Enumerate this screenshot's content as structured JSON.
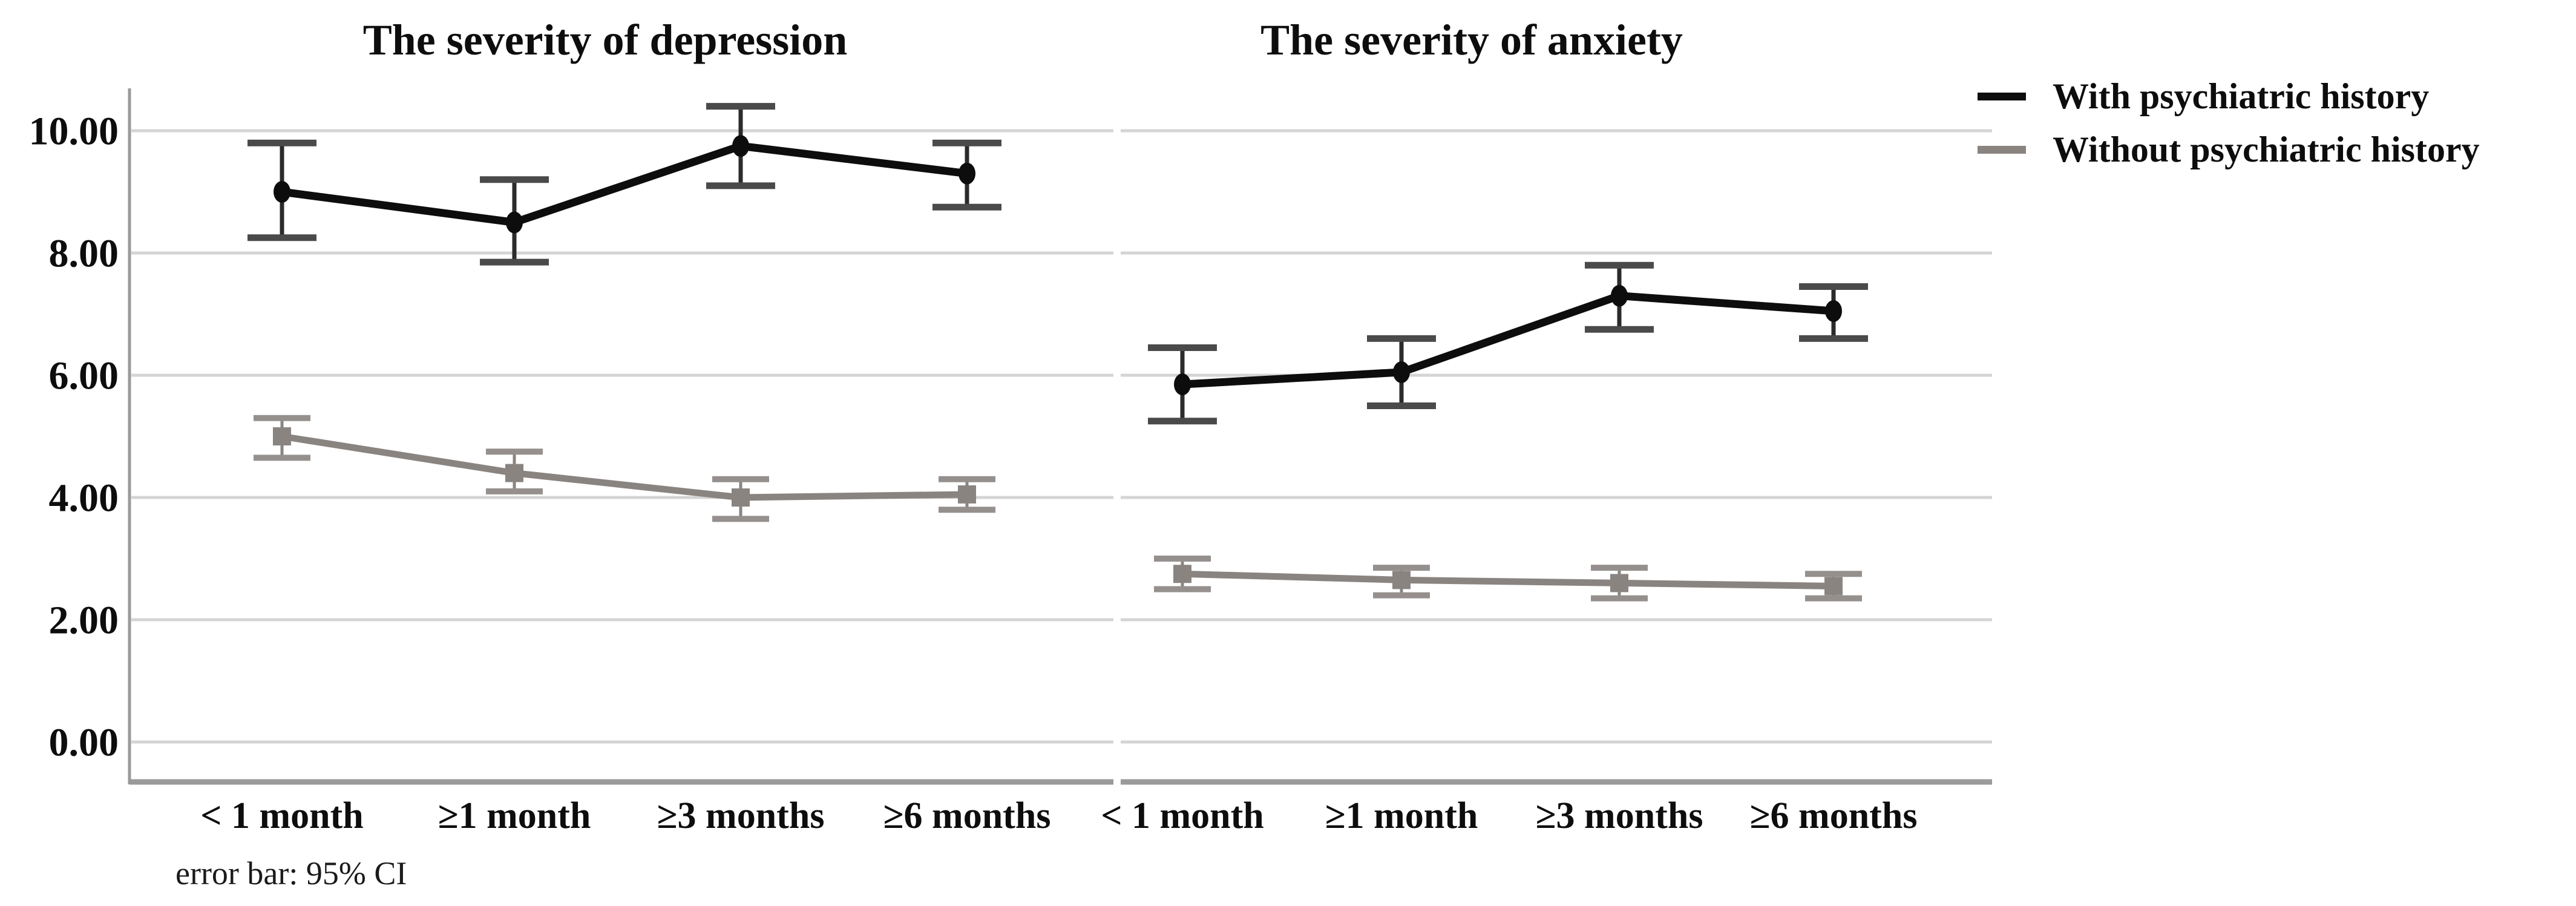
{
  "figure": {
    "note": "error bar: 95% CI",
    "y_tick_labels": [
      "10.00",
      "8.00",
      "6.00",
      "4.00",
      "2.00",
      "0.00"
    ],
    "y_tick_values": [
      10,
      8,
      6,
      4,
      2,
      0
    ],
    "background_color": "#ffffff",
    "gridline_color": "#d4d4d4",
    "axis_color": "#9a9a9a",
    "text_color": "#0d0d0d"
  },
  "legend": {
    "items": [
      {
        "label": "With psychiatric history",
        "color": "#0d0d0d"
      },
      {
        "label": "Without psychiatric history",
        "color": "#8a8481"
      }
    ]
  },
  "chart_data": [
    {
      "type": "line",
      "title": "The severity of depression",
      "categories": [
        "< 1 month",
        "≥1 month",
        "≥3 months",
        "≥6 months"
      ],
      "xlabel": "",
      "ylabel": "",
      "ylim": [
        0,
        10.9
      ],
      "grid": true,
      "error_bars": "95% CI",
      "series": [
        {
          "name": "With psychiatric history",
          "color": "#0d0d0d",
          "marker": "circle",
          "values": [
            9.0,
            8.5,
            9.75,
            9.3
          ],
          "ci_low": [
            8.25,
            7.85,
            9.1,
            8.75
          ],
          "ci_high": [
            9.8,
            9.2,
            10.4,
            9.8
          ]
        },
        {
          "name": "Without psychiatric history",
          "color": "#8a8481",
          "marker": "square",
          "values": [
            5.0,
            4.4,
            4.0,
            4.05
          ],
          "ci_low": [
            4.65,
            4.1,
            3.65,
            3.8
          ],
          "ci_high": [
            5.3,
            4.75,
            4.3,
            4.3
          ]
        }
      ]
    },
    {
      "type": "line",
      "title": "The severity of anxiety",
      "categories": [
        "< 1 month",
        "≥1 month",
        "≥3 months",
        "≥6 months"
      ],
      "xlabel": "",
      "ylabel": "",
      "ylim": [
        0,
        10.9
      ],
      "grid": true,
      "error_bars": "95% CI",
      "series": [
        {
          "name": "With psychiatric history",
          "color": "#0d0d0d",
          "marker": "circle",
          "values": [
            5.85,
            6.05,
            7.3,
            7.05
          ],
          "ci_low": [
            5.25,
            5.5,
            6.75,
            6.6
          ],
          "ci_high": [
            6.45,
            6.6,
            7.8,
            7.45
          ]
        },
        {
          "name": "Without psychiatric history",
          "color": "#8a8481",
          "marker": "square",
          "values": [
            2.75,
            2.65,
            2.6,
            2.55
          ],
          "ci_low": [
            2.5,
            2.4,
            2.35,
            2.35
          ],
          "ci_high": [
            3.0,
            2.85,
            2.85,
            2.75
          ]
        }
      ]
    }
  ]
}
